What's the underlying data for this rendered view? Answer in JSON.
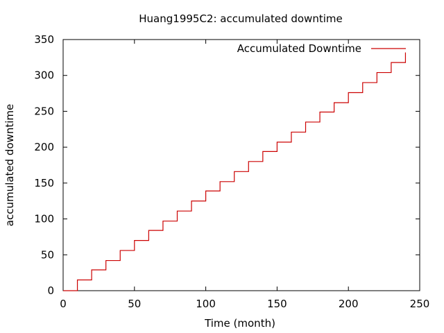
{
  "chart_data": {
    "type": "line",
    "title": "Huang1995C2: accumulated downtime",
    "xlabel": "Time (month)",
    "ylabel": "accumulated downtime",
    "xlim": [
      0,
      250
    ],
    "ylim": [
      0,
      350
    ],
    "xticks": [
      "0",
      "50",
      "100",
      "150",
      "200",
      "250"
    ],
    "yticks": [
      "0",
      "50",
      "100",
      "150",
      "200",
      "250",
      "300",
      "350"
    ],
    "grid": false,
    "legend_position": "top-right",
    "series": [
      {
        "name": "Accumulated Downtime",
        "color": "#cc0000",
        "x": [
          0,
          10,
          20,
          30,
          40,
          50,
          60,
          70,
          80,
          90,
          100,
          110,
          120,
          130,
          140,
          150,
          160,
          170,
          180,
          190,
          200,
          210,
          220,
          230,
          240
        ],
        "y": [
          0,
          15,
          29,
          42,
          56,
          70,
          84,
          97,
          111,
          125,
          139,
          152,
          166,
          180,
          194,
          207,
          221,
          235,
          249,
          262,
          276,
          290,
          304,
          318,
          332
        ]
      }
    ]
  }
}
